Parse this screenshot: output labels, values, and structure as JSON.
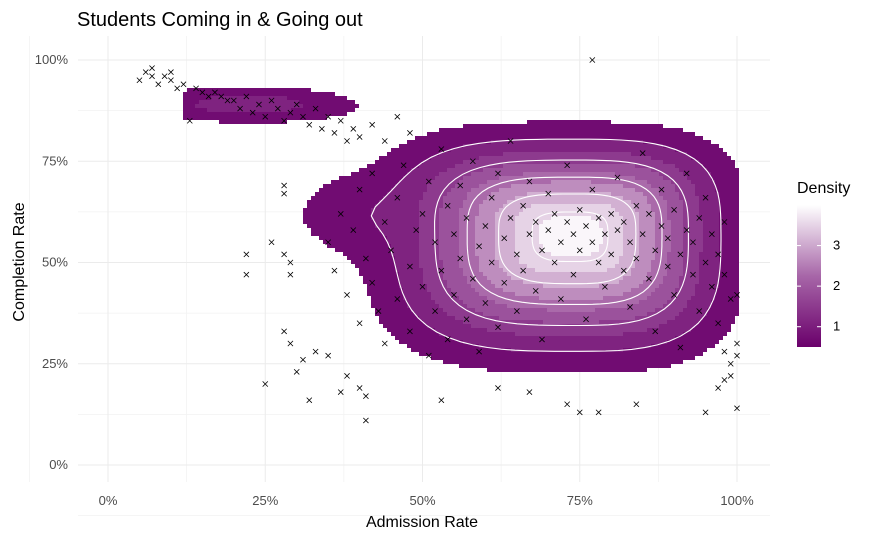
{
  "chart_data": {
    "type": "scatter",
    "title": "Students Coming in & Going out",
    "xlabel": "Admission Rate",
    "ylabel": "Completion Rate",
    "xlim": [
      -0.1,
      1.05
    ],
    "ylim": [
      -0.05,
      1.05
    ],
    "x_ticks": [
      0,
      0.25,
      0.5,
      0.75,
      1.0
    ],
    "x_tick_labels": [
      "0%",
      "25%",
      "50%",
      "75%",
      "100%"
    ],
    "y_ticks": [
      0,
      0.25,
      0.5,
      0.75,
      1.0
    ],
    "y_tick_labels": [
      "0%",
      "25%",
      "50%",
      "75%",
      "100%"
    ],
    "grid": true,
    "point_marker": "x",
    "point_color": "#000000",
    "density_overlay": {
      "type": "2d-density-filled",
      "peak": {
        "x": 0.74,
        "y": 0.57
      },
      "color_low": "#6a006b",
      "color_high": "#ffffff",
      "contour_color": "#ffffff"
    },
    "legend": {
      "title": "Density",
      "position": "right",
      "ticks": [
        1,
        2,
        3
      ],
      "range": [
        0.5,
        4.0
      ]
    },
    "points": [
      [
        0.05,
        0.95
      ],
      [
        0.06,
        0.97
      ],
      [
        0.07,
        0.96
      ],
      [
        0.07,
        0.98
      ],
      [
        0.08,
        0.94
      ],
      [
        0.09,
        0.96
      ],
      [
        0.1,
        0.95
      ],
      [
        0.1,
        0.97
      ],
      [
        0.11,
        0.93
      ],
      [
        0.12,
        0.94
      ],
      [
        0.13,
        0.85
      ],
      [
        0.14,
        0.93
      ],
      [
        0.15,
        0.92
      ],
      [
        0.16,
        0.91
      ],
      [
        0.17,
        0.92
      ],
      [
        0.18,
        0.91
      ],
      [
        0.19,
        0.9
      ],
      [
        0.2,
        0.9
      ],
      [
        0.21,
        0.88
      ],
      [
        0.22,
        0.91
      ],
      [
        0.23,
        0.87
      ],
      [
        0.24,
        0.89
      ],
      [
        0.25,
        0.86
      ],
      [
        0.26,
        0.9
      ],
      [
        0.27,
        0.88
      ],
      [
        0.28,
        0.85
      ],
      [
        0.29,
        0.87
      ],
      [
        0.3,
        0.89
      ],
      [
        0.31,
        0.86
      ],
      [
        0.32,
        0.84
      ],
      [
        0.33,
        0.88
      ],
      [
        0.34,
        0.83
      ],
      [
        0.35,
        0.86
      ],
      [
        0.36,
        0.82
      ],
      [
        0.37,
        0.85
      ],
      [
        0.38,
        0.8
      ],
      [
        0.39,
        0.83
      ],
      [
        0.4,
        0.81
      ],
      [
        0.42,
        0.84
      ],
      [
        0.44,
        0.8
      ],
      [
        0.46,
        0.86
      ],
      [
        0.48,
        0.82
      ],
      [
        0.28,
        0.69
      ],
      [
        0.28,
        0.67
      ],
      [
        0.26,
        0.55
      ],
      [
        0.22,
        0.52
      ],
      [
        0.22,
        0.47
      ],
      [
        0.28,
        0.52
      ],
      [
        0.29,
        0.5
      ],
      [
        0.29,
        0.47
      ],
      [
        0.28,
        0.33
      ],
      [
        0.29,
        0.3
      ],
      [
        0.3,
        0.23
      ],
      [
        0.31,
        0.26
      ],
      [
        0.25,
        0.2
      ],
      [
        0.32,
        0.16
      ],
      [
        0.33,
        0.28
      ],
      [
        0.35,
        0.27
      ],
      [
        0.38,
        0.22
      ],
      [
        0.41,
        0.11
      ],
      [
        0.41,
        0.17
      ],
      [
        0.4,
        0.19
      ],
      [
        0.37,
        0.18
      ],
      [
        0.53,
        0.16
      ],
      [
        0.62,
        0.19
      ],
      [
        0.67,
        0.18
      ],
      [
        0.73,
        0.15
      ],
      [
        0.75,
        0.13
      ],
      [
        0.78,
        0.13
      ],
      [
        0.84,
        0.15
      ],
      [
        0.95,
        0.13
      ],
      [
        1.0,
        0.14
      ],
      [
        0.97,
        0.19
      ],
      [
        0.98,
        0.21
      ],
      [
        0.99,
        0.22
      ],
      [
        0.77,
        1.0
      ],
      [
        0.35,
        0.55
      ],
      [
        0.36,
        0.48
      ],
      [
        0.37,
        0.62
      ],
      [
        0.38,
        0.42
      ],
      [
        0.39,
        0.58
      ],
      [
        0.4,
        0.35
      ],
      [
        0.4,
        0.68
      ],
      [
        0.41,
        0.51
      ],
      [
        0.42,
        0.45
      ],
      [
        0.42,
        0.72
      ],
      [
        0.43,
        0.38
      ],
      [
        0.44,
        0.6
      ],
      [
        0.44,
        0.3
      ],
      [
        0.45,
        0.53
      ],
      [
        0.46,
        0.66
      ],
      [
        0.46,
        0.41
      ],
      [
        0.47,
        0.74
      ],
      [
        0.48,
        0.49
      ],
      [
        0.48,
        0.33
      ],
      [
        0.49,
        0.58
      ],
      [
        0.5,
        0.62
      ],
      [
        0.5,
        0.44
      ],
      [
        0.51,
        0.27
      ],
      [
        0.51,
        0.7
      ],
      [
        0.52,
        0.55
      ],
      [
        0.52,
        0.38
      ],
      [
        0.53,
        0.78
      ],
      [
        0.53,
        0.48
      ],
      [
        0.54,
        0.64
      ],
      [
        0.54,
        0.31
      ],
      [
        0.55,
        0.57
      ],
      [
        0.55,
        0.42
      ],
      [
        0.56,
        0.69
      ],
      [
        0.56,
        0.51
      ],
      [
        0.57,
        0.36
      ],
      [
        0.57,
        0.61
      ],
      [
        0.58,
        0.46
      ],
      [
        0.58,
        0.75
      ],
      [
        0.59,
        0.54
      ],
      [
        0.59,
        0.28
      ],
      [
        0.6,
        0.59
      ],
      [
        0.6,
        0.4
      ],
      [
        0.61,
        0.66
      ],
      [
        0.61,
        0.5
      ],
      [
        0.62,
        0.34
      ],
      [
        0.62,
        0.72
      ],
      [
        0.63,
        0.56
      ],
      [
        0.63,
        0.45
      ],
      [
        0.64,
        0.61
      ],
      [
        0.64,
        0.8
      ],
      [
        0.65,
        0.52
      ],
      [
        0.65,
        0.38
      ],
      [
        0.66,
        0.64
      ],
      [
        0.66,
        0.48
      ],
      [
        0.67,
        0.57
      ],
      [
        0.67,
        0.7
      ],
      [
        0.68,
        0.43
      ],
      [
        0.68,
        0.6
      ],
      [
        0.69,
        0.53
      ],
      [
        0.69,
        0.31
      ],
      [
        0.7,
        0.58
      ],
      [
        0.7,
        0.67
      ],
      [
        0.71,
        0.5
      ],
      [
        0.71,
        0.62
      ],
      [
        0.72,
        0.55
      ],
      [
        0.72,
        0.41
      ],
      [
        0.73,
        0.6
      ],
      [
        0.73,
        0.74
      ],
      [
        0.74,
        0.57
      ],
      [
        0.74,
        0.47
      ],
      [
        0.75,
        0.63
      ],
      [
        0.75,
        0.53
      ],
      [
        0.76,
        0.59
      ],
      [
        0.76,
        0.36
      ],
      [
        0.77,
        0.55
      ],
      [
        0.77,
        0.68
      ],
      [
        0.78,
        0.5
      ],
      [
        0.78,
        0.61
      ],
      [
        0.79,
        0.57
      ],
      [
        0.79,
        0.44
      ],
      [
        0.8,
        0.62
      ],
      [
        0.8,
        0.52
      ],
      [
        0.81,
        0.58
      ],
      [
        0.81,
        0.71
      ],
      [
        0.82,
        0.48
      ],
      [
        0.82,
        0.6
      ],
      [
        0.83,
        0.55
      ],
      [
        0.83,
        0.39
      ],
      [
        0.84,
        0.64
      ],
      [
        0.84,
        0.51
      ],
      [
        0.85,
        0.57
      ],
      [
        0.85,
        0.77
      ],
      [
        0.86,
        0.46
      ],
      [
        0.86,
        0.62
      ],
      [
        0.87,
        0.53
      ],
      [
        0.87,
        0.33
      ],
      [
        0.88,
        0.59
      ],
      [
        0.88,
        0.68
      ],
      [
        0.89,
        0.49
      ],
      [
        0.89,
        0.56
      ],
      [
        0.9,
        0.42
      ],
      [
        0.9,
        0.63
      ],
      [
        0.91,
        0.52
      ],
      [
        0.91,
        0.29
      ],
      [
        0.92,
        0.58
      ],
      [
        0.92,
        0.72
      ],
      [
        0.93,
        0.47
      ],
      [
        0.93,
        0.55
      ],
      [
        0.94,
        0.38
      ],
      [
        0.94,
        0.61
      ],
      [
        0.95,
        0.5
      ],
      [
        0.95,
        0.66
      ],
      [
        0.96,
        0.44
      ],
      [
        0.96,
        0.57
      ],
      [
        0.97,
        0.35
      ],
      [
        0.97,
        0.52
      ],
      [
        0.98,
        0.47
      ],
      [
        0.98,
        0.6
      ],
      [
        0.99,
        0.41
      ],
      [
        1.0,
        0.42
      ],
      [
        1.0,
        0.3
      ],
      [
        1.0,
        0.27
      ],
      [
        0.99,
        0.25
      ],
      [
        0.98,
        0.28
      ]
    ]
  }
}
